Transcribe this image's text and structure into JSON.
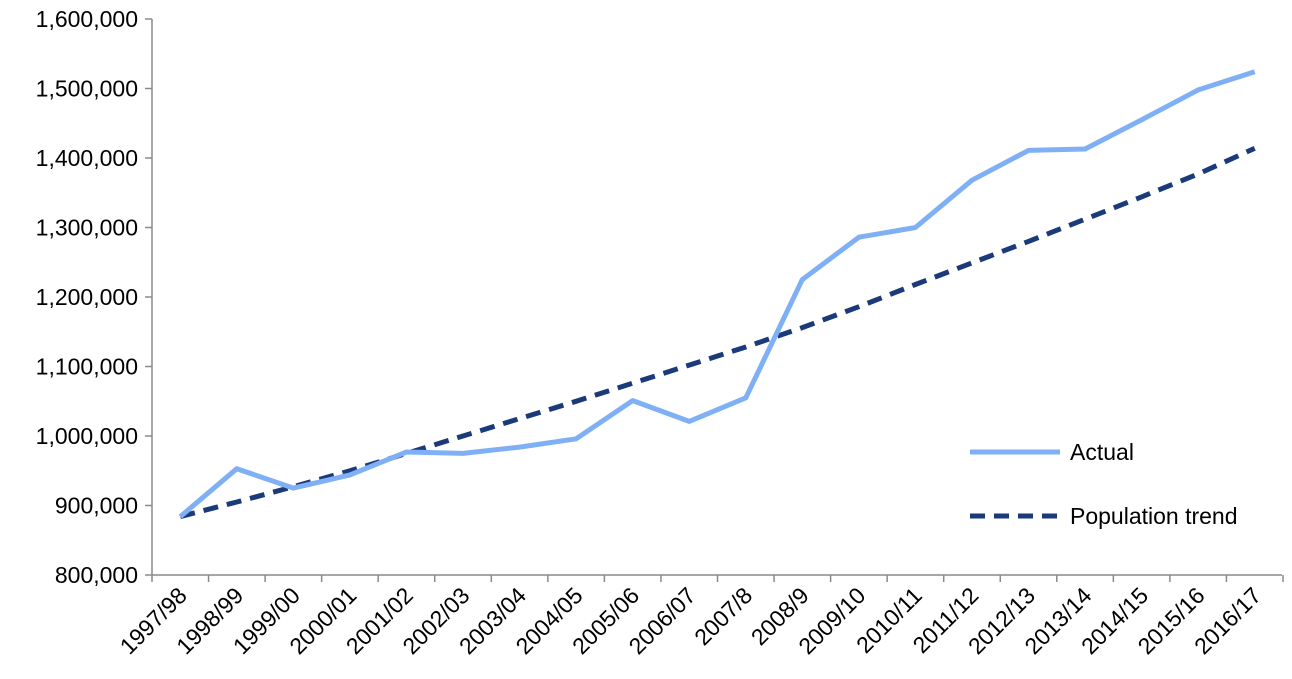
{
  "chart_data": {
    "type": "line",
    "title": "",
    "xlabel": "",
    "ylabel": "",
    "categories": [
      "1997/98",
      "1998/99",
      "1999/00",
      "2000/01",
      "2001/02",
      "2002/03",
      "2003/04",
      "2004/05",
      "2005/06",
      "2006/07",
      "2007/8",
      "2008/9",
      "2009/10",
      "2010/11",
      "2011/12",
      "2012/13",
      "2013/14",
      "2014/15",
      "2015/16",
      "2016/17"
    ],
    "ylim": [
      800000,
      1600000
    ],
    "yticks": [
      800000,
      900000,
      1000000,
      1100000,
      1200000,
      1300000,
      1400000,
      1500000,
      1600000
    ],
    "ytick_labels": [
      "800,000",
      "900,000",
      "1,000,000",
      "1,100,000",
      "1,200,000",
      "1,300,000",
      "1,400,000",
      "1,500,000",
      "1,600,000"
    ],
    "grid": false,
    "legend_position": "right",
    "series": [
      {
        "name": "Actual",
        "style": "solid",
        "color": "#7fb0f5",
        "values": [
          884000,
          953000,
          925000,
          944000,
          977000,
          975000,
          984000,
          996000,
          1051000,
          1021000,
          1055000,
          1225000,
          1286000,
          1300000,
          1368000,
          1411000,
          1413000,
          1455000,
          1498000,
          1524000
        ]
      },
      {
        "name": "Population trend",
        "style": "dashed",
        "color": "#1b3a7a",
        "values": [
          884000,
          905000,
          927000,
          950000,
          975000,
          1000000,
          1025000,
          1050000,
          1076000,
          1102000,
          1128000,
          1156000,
          1186000,
          1218000,
          1249000,
          1280000,
          1312000,
          1344000,
          1377000,
          1414000
        ]
      }
    ]
  }
}
